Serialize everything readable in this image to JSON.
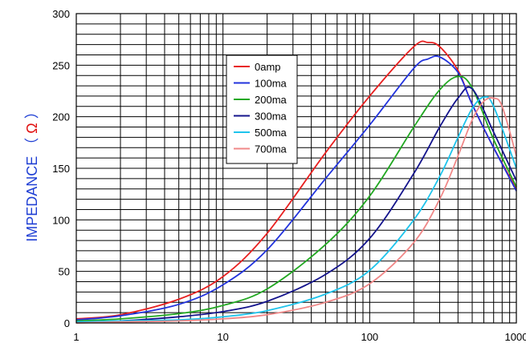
{
  "chart_data": {
    "type": "line",
    "title": "",
    "xlabel": "",
    "ylabel": {
      "text": "IMPEDANCE",
      "open_paren": "（",
      "symbol": "Ω",
      "close_paren": "）",
      "text_color": "#1f3fd4",
      "symbol_color": "#e01010"
    },
    "x_scale": "log",
    "xlim": [
      1,
      1000
    ],
    "ylim": [
      0,
      300
    ],
    "x_tick_labels": [
      "1",
      "10",
      "100",
      "1000"
    ],
    "y_tick_labels": [
      "0",
      "50",
      "100",
      "150",
      "200",
      "250",
      "300"
    ],
    "grid": true,
    "legend_position": "upper-center",
    "series": [
      {
        "name": "0amp",
        "color": "#e82020",
        "x": [
          1,
          2,
          5,
          10,
          20,
          50,
          100,
          200,
          250,
          300,
          400,
          500,
          700,
          1000
        ],
        "y": [
          4,
          8,
          23,
          45,
          87,
          165,
          220,
          268,
          272,
          268,
          245,
          212,
          170,
          130
        ]
      },
      {
        "name": "100ma",
        "color": "#2233dd",
        "x": [
          1,
          2,
          5,
          10,
          20,
          50,
          100,
          200,
          250,
          300,
          400,
          500,
          700,
          1000
        ],
        "y": [
          3,
          7,
          18,
          37,
          71,
          140,
          192,
          247,
          256,
          258,
          243,
          212,
          170,
          128
        ]
      },
      {
        "name": "200ma",
        "color": "#22a822",
        "x": [
          1,
          2,
          5,
          10,
          20,
          50,
          100,
          200,
          300,
          400,
          500,
          700,
          1000
        ],
        "y": [
          2,
          4,
          9,
          17,
          33,
          76,
          123,
          190,
          226,
          239,
          228,
          178,
          132
        ]
      },
      {
        "name": "300ma",
        "color": "#14148c",
        "x": [
          1,
          2,
          5,
          10,
          20,
          50,
          100,
          200,
          300,
          400,
          500,
          700,
          1000
        ],
        "y": [
          1,
          2,
          6,
          11,
          21,
          47,
          82,
          145,
          190,
          218,
          227,
          185,
          138
        ]
      },
      {
        "name": "500ma",
        "color": "#1ec4ec",
        "x": [
          1,
          2,
          5,
          10,
          20,
          50,
          100,
          200,
          300,
          400,
          500,
          600,
          700,
          1000
        ],
        "y": [
          1,
          2,
          3,
          6,
          12,
          28,
          51,
          100,
          142,
          180,
          208,
          219,
          210,
          150
        ]
      },
      {
        "name": "700ma",
        "color": "#f08888",
        "x": [
          1,
          2,
          5,
          10,
          20,
          50,
          100,
          200,
          300,
          400,
          500,
          600,
          700,
          800,
          1000
        ],
        "y": [
          0,
          1,
          2,
          4,
          8,
          20,
          38,
          78,
          120,
          162,
          197,
          215,
          218,
          210,
          162
        ]
      }
    ]
  }
}
